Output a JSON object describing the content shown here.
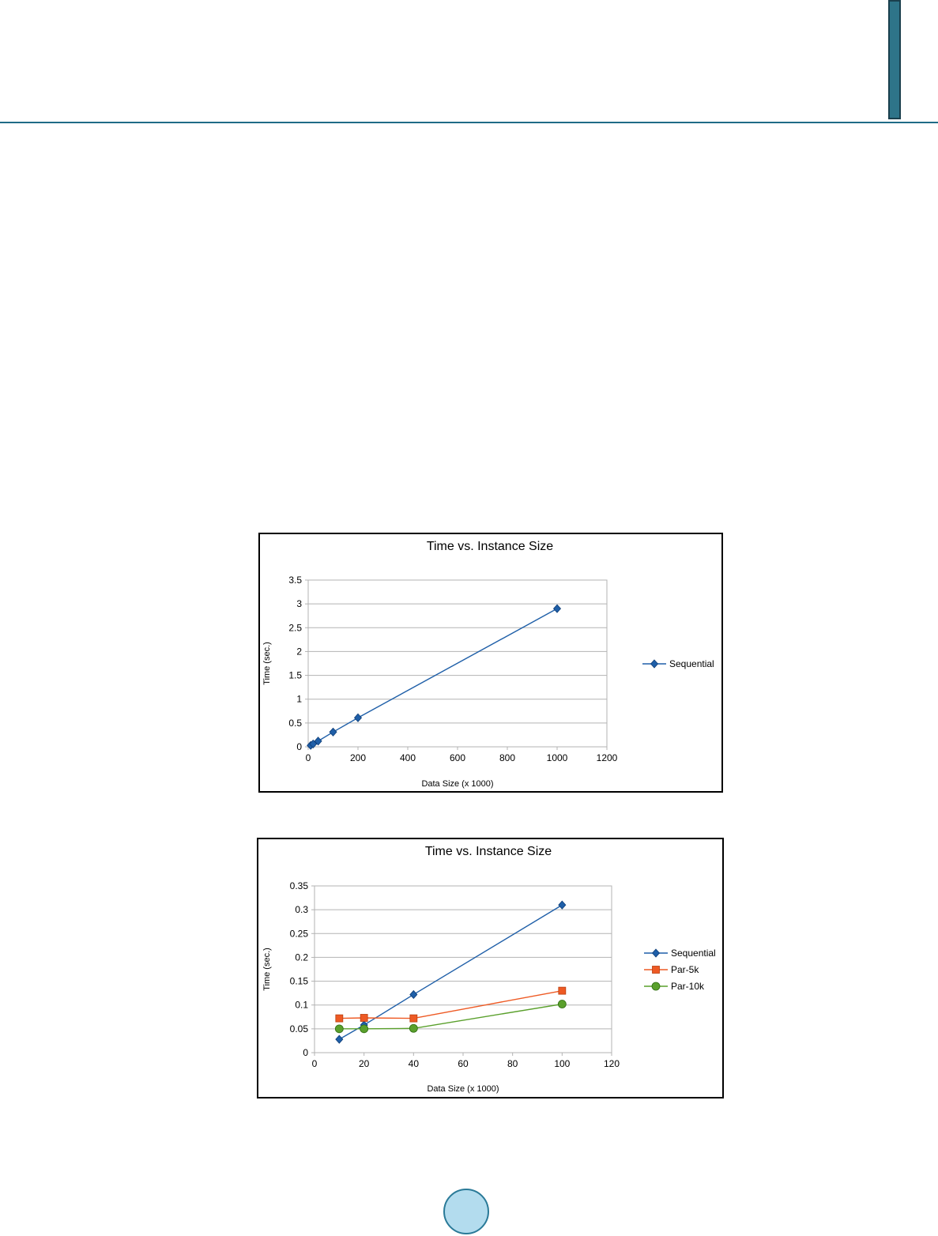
{
  "page": {
    "accent_color": "#1f6b87",
    "tab_color": "#2e7489",
    "badge_fill": "#b3dcee",
    "badge_border": "#2a7a98"
  },
  "chart_data": [
    {
      "type": "line",
      "title": "Time vs. Instance Size",
      "xlabel": "Data Size (x 1000)",
      "ylabel": "Time (sec.)",
      "xlim": [
        0,
        1200
      ],
      "ylim": [
        0,
        3.5
      ],
      "xticks": [
        0,
        200,
        400,
        600,
        800,
        1000,
        1200
      ],
      "yticks": [
        0,
        0.5,
        1,
        1.5,
        2,
        2.5,
        3,
        3.5
      ],
      "grid": true,
      "legend_position": "right",
      "series": [
        {
          "name": "Sequential",
          "color": "#1f5fa8",
          "marker": "diamond",
          "points": [
            [
              10,
              0.03
            ],
            [
              20,
              0.06
            ],
            [
              40,
              0.12
            ],
            [
              100,
              0.31
            ],
            [
              200,
              0.61
            ],
            [
              1000,
              2.9
            ]
          ]
        }
      ]
    },
    {
      "type": "line",
      "title": "Time vs. Instance Size",
      "xlabel": "Data Size (x 1000)",
      "ylabel": "Time (sec.)",
      "xlim": [
        0,
        120
      ],
      "ylim": [
        0,
        0.35
      ],
      "xticks": [
        0,
        20,
        40,
        60,
        80,
        100,
        120
      ],
      "yticks": [
        0,
        0.05,
        0.1,
        0.15,
        0.2,
        0.25,
        0.3,
        0.35
      ],
      "grid": true,
      "legend_position": "right",
      "series": [
        {
          "name": "Sequential",
          "color": "#1f5fa8",
          "marker": "diamond",
          "points": [
            [
              10,
              0.028
            ],
            [
              20,
              0.058
            ],
            [
              40,
              0.122
            ],
            [
              100,
              0.31
            ]
          ]
        },
        {
          "name": "Par-5k",
          "color": "#ee5a24",
          "marker": "square",
          "points": [
            [
              10,
              0.072
            ],
            [
              20,
              0.073
            ],
            [
              40,
              0.072
            ],
            [
              100,
              0.13
            ]
          ]
        },
        {
          "name": "Par-10k",
          "color": "#5aa02c",
          "marker": "circle",
          "points": [
            [
              10,
              0.05
            ],
            [
              20,
              0.05
            ],
            [
              40,
              0.051
            ],
            [
              100,
              0.102
            ]
          ]
        }
      ]
    }
  ]
}
